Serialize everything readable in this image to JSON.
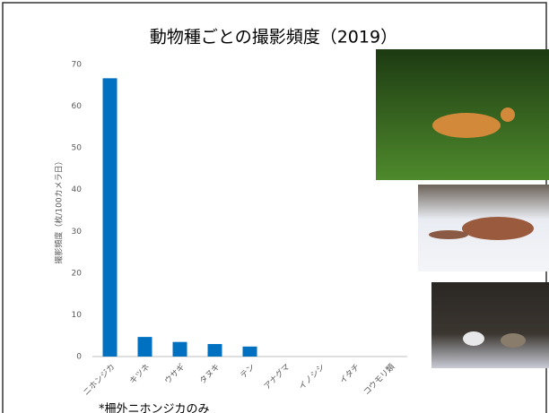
{
  "chart_data": {
    "type": "bar",
    "title": "動物種ごとの撮影頻度（2019）",
    "y_label": "撮影頻度（枚/100カメラ日）",
    "categories": [
      "ニホンジカ",
      "キツネ",
      "ウサギ",
      "タヌキ",
      "テン",
      "アナグマ",
      "イノシシ",
      "イタチ",
      "コウモリ類"
    ],
    "values": [
      66.7,
      4.7,
      3.5,
      3.0,
      2.4,
      0,
      0,
      0,
      0
    ],
    "color": "#0070c0",
    "ylim": [
      0,
      70
    ],
    "yticks": [
      0,
      10,
      20,
      30,
      40,
      50,
      60,
      70
    ],
    "grid": false,
    "note": "*柵外ニホンジカのみ"
  }
}
